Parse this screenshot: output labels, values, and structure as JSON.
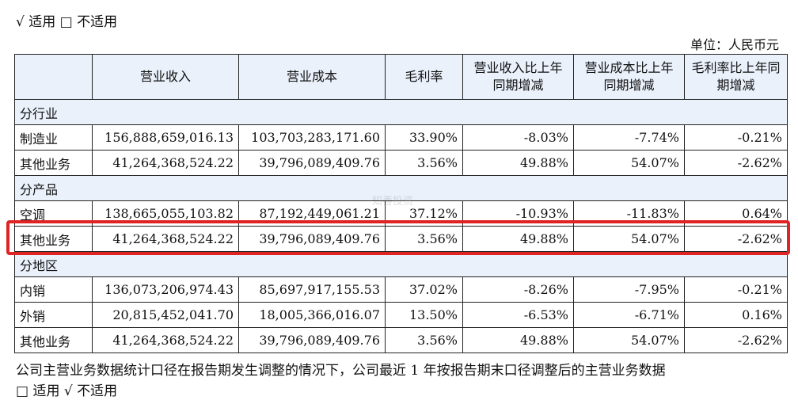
{
  "applicable_top": "√  适用  □  不适用",
  "unit": "单位：人民币元",
  "table": {
    "headers": [
      "",
      "营业收入",
      "营业成本",
      "毛利率",
      "营业收入比上年同期增减",
      "营业成本比上年同期增减",
      "毛利率比上年同期增减"
    ],
    "sections": [
      {
        "title": "分行业",
        "rows": [
          [
            "制造业",
            "156,888,659,016.13",
            "103,703,283,171.60",
            "33.90%",
            "-8.03%",
            "-7.74%",
            "-0.21%"
          ],
          [
            "其他业务",
            "41,264,368,524.22",
            "39,796,089,409.76",
            "3.56%",
            "49.88%",
            "54.07%",
            "-2.62%"
          ]
        ]
      },
      {
        "title": "分产品",
        "rows": [
          [
            "空调",
            "138,665,055,103.82",
            "87,192,449,061.21",
            "37.12%",
            "-10.93%",
            "-11.83%",
            "0.64%"
          ],
          [
            "其他业务",
            "41,264,368,524.22",
            "39,796,089,409.76",
            "3.56%",
            "49.88%",
            "54.07%",
            "-2.62%"
          ]
        ]
      },
      {
        "title": "分地区",
        "rows": [
          [
            "内销",
            "136,073,206,974.43",
            "85,697,917,155.53",
            "37.02%",
            "-8.26%",
            "-7.95%",
            "-0.21%"
          ],
          [
            "外销",
            "20,815,452,041.70",
            "18,005,366,016.07",
            "13.50%",
            "-6.53%",
            "-6.71%",
            "0.16%"
          ],
          [
            "其他业务",
            "41,264,368,524.22",
            "39,796,089,409.76",
            "3.56%",
            "49.88%",
            "54.07%",
            "-2.62%"
          ]
        ]
      }
    ]
  },
  "watermark": "知善投资",
  "note": "公司主营业务数据统计口径在报告期发生调整的情况下，公司最近 1 年按报告期末口径调整后的主营业务数据",
  "applicable_bottom": "□  适用  √  不适用",
  "highlight_color": "#e02424"
}
